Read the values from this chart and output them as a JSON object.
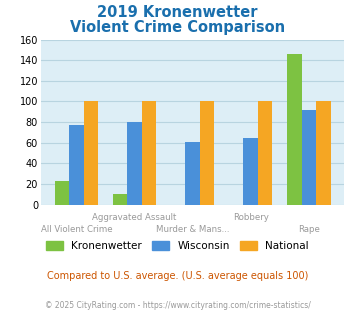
{
  "title_line1": "2019 Kronenwetter",
  "title_line2": "Violent Crime Comparison",
  "title_color": "#1a6fad",
  "categories": [
    "All Violent Crime",
    "Aggravated Assault",
    "Murder & Mans...",
    "Robbery",
    "Rape"
  ],
  "series": {
    "Kronenwetter": [
      23,
      10,
      0,
      0,
      146
    ],
    "Wisconsin": [
      77,
      80,
      61,
      65,
      92
    ],
    "National": [
      100,
      100,
      100,
      100,
      100
    ]
  },
  "series_colors": {
    "Kronenwetter": "#7dc242",
    "Wisconsin": "#4a90d9",
    "National": "#f5a623"
  },
  "ylim": [
    0,
    160
  ],
  "yticks": [
    0,
    20,
    40,
    60,
    80,
    100,
    120,
    140,
    160
  ],
  "plot_bg_color": "#ddeef6",
  "grid_color": "#b8d4e0",
  "footer_text": "Compared to U.S. average. (U.S. average equals 100)",
  "footer_color": "#cc5500",
  "copyright_text": "© 2025 CityRating.com - https://www.cityrating.com/crime-statistics/",
  "copyright_color": "#999999",
  "top_row_labels": [
    "",
    "Aggravated Assault",
    "",
    "Robbery",
    ""
  ],
  "bot_row_labels": [
    "All Violent Crime",
    "",
    "Murder & Mans...",
    "",
    "Rape"
  ],
  "label_color": "#999999"
}
